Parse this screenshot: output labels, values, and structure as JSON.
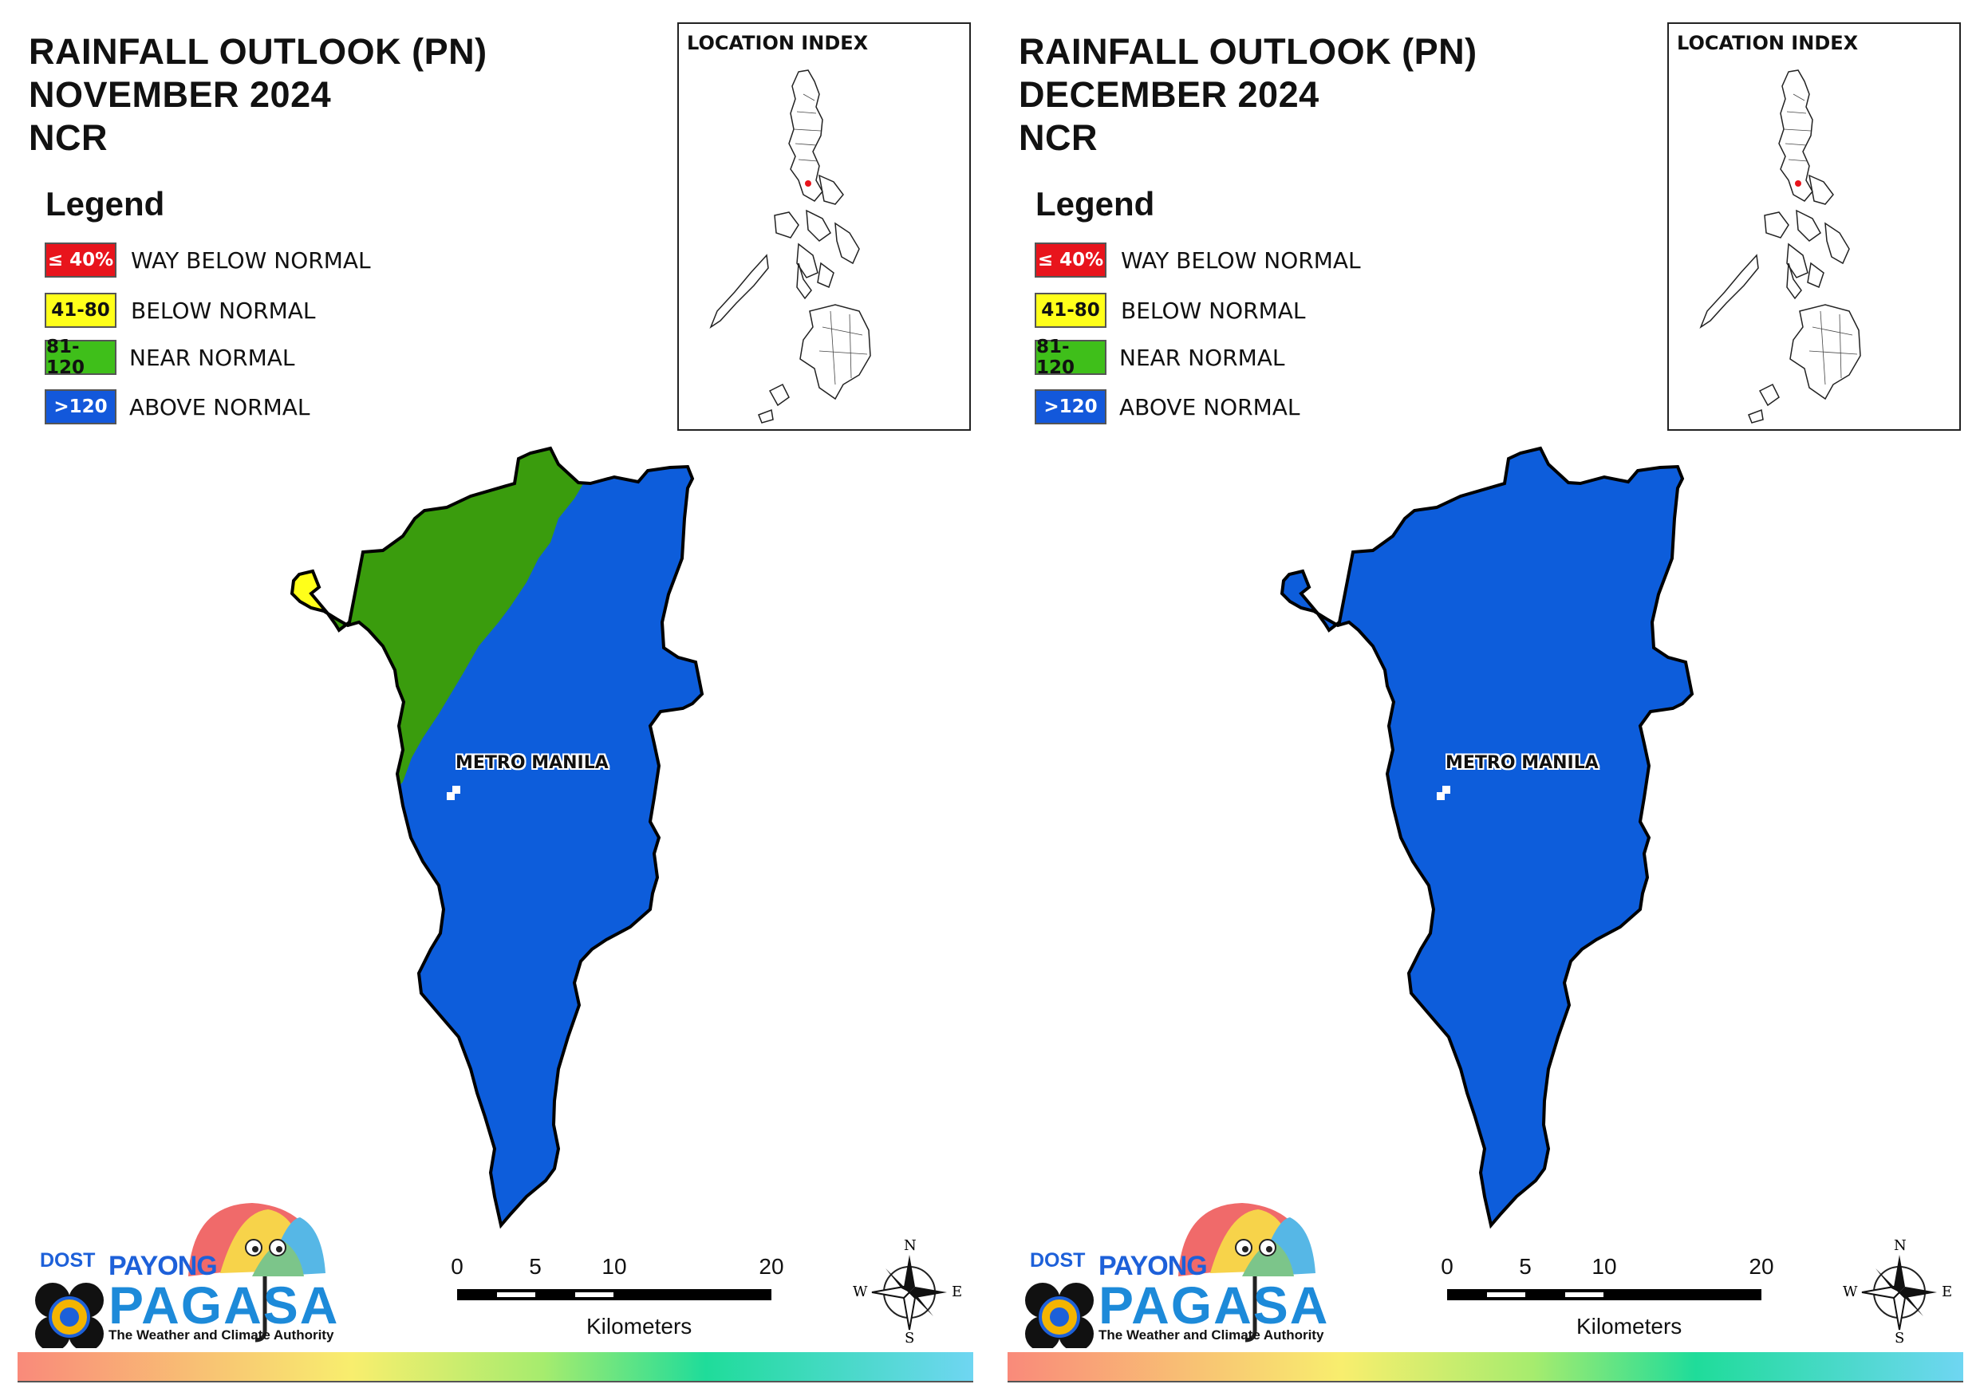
{
  "legend": {
    "title": "Legend",
    "items": [
      {
        "range": "≤ 40%",
        "label": "WAY BELOW NORMAL",
        "color": "#e8141c",
        "text_color": "#ffffff"
      },
      {
        "range": "41-80",
        "label": "BELOW NORMAL",
        "color": "#ffff1a",
        "text_color": "#111111"
      },
      {
        "range": "81-120",
        "label": "NEAR NORMAL",
        "color": "#3fbf1a",
        "text_color": "#111111"
      },
      {
        "range": ">120",
        "label": "ABOVE NORMAL",
        "color": "#1358db",
        "text_color": "#ffffff"
      }
    ]
  },
  "panels": [
    {
      "title_line1": "RAINFALL OUTLOOK (PN)",
      "title_line2": "NOVEMBER 2024",
      "title_line3": "NCR",
      "region_label": "METRO MANILA",
      "categories_present": [
        "ABOVE NORMAL",
        "NEAR NORMAL",
        "BELOW NORMAL"
      ]
    },
    {
      "title_line1": "RAINFALL OUTLOOK (PN)",
      "title_line2": "DECEMBER 2024",
      "title_line3": "NCR",
      "region_label": "METRO MANILA",
      "categories_present": [
        "ABOVE NORMAL"
      ]
    }
  ],
  "inset": {
    "title": "LOCATION INDEX"
  },
  "scale_bar": {
    "ticks": [
      "0",
      "5",
      "10",
      "20"
    ],
    "unit": "Kilometers"
  },
  "compass": {
    "n": "N",
    "s": "S",
    "e": "E",
    "w": "W"
  },
  "branding": {
    "dost": "DOST",
    "payong": "PAYONG",
    "pagasa": "PAGASA",
    "tagline": "The Weather and Climate Authority"
  },
  "colors": {
    "near_normal_map": "#3a9c0d",
    "above_normal_map": "#0d5ddb",
    "below_normal_map": "#ffff1a"
  }
}
